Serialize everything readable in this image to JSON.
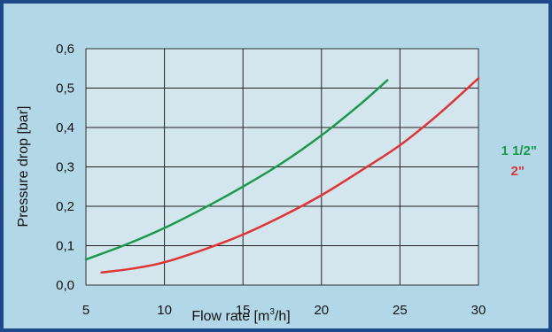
{
  "chart_data": {
    "type": "line",
    "xlabel_text": "Flow rate [m",
    "xlabel_sup": "3",
    "xlabel_end": "/h]",
    "ylabel": "Pressure drop [bar]",
    "xlim": [
      5,
      30
    ],
    "ylim": [
      0,
      0.6
    ],
    "x_ticks": [
      5,
      10,
      15,
      20,
      25,
      30
    ],
    "x_tick_labels": [
      "5",
      "10",
      "15",
      "20",
      "25",
      "30"
    ],
    "y_ticks": [
      0,
      0.1,
      0.2,
      0.3,
      0.4,
      0.5,
      0.6
    ],
    "y_tick_labels": [
      "0,0",
      "0,1",
      "0,2",
      "0,3",
      "0,4",
      "0,5",
      "0,6"
    ],
    "grid": true,
    "legend_position": "right",
    "series": [
      {
        "name": "1 1/2\"",
        "color": "#1a9a4a",
        "x": [
          5,
          7.5,
          10,
          12.5,
          15,
          17.5,
          20,
          22.5,
          24.2
        ],
        "y": [
          0.065,
          0.102,
          0.145,
          0.195,
          0.25,
          0.31,
          0.38,
          0.46,
          0.52
        ]
      },
      {
        "name": "2\"",
        "color": "#e03535",
        "x": [
          6,
          8,
          10,
          12.5,
          15,
          17.5,
          20,
          22.5,
          25,
          27.5,
          30
        ],
        "y": [
          0.032,
          0.042,
          0.058,
          0.09,
          0.128,
          0.175,
          0.228,
          0.29,
          0.355,
          0.435,
          0.525
        ]
      }
    ]
  }
}
